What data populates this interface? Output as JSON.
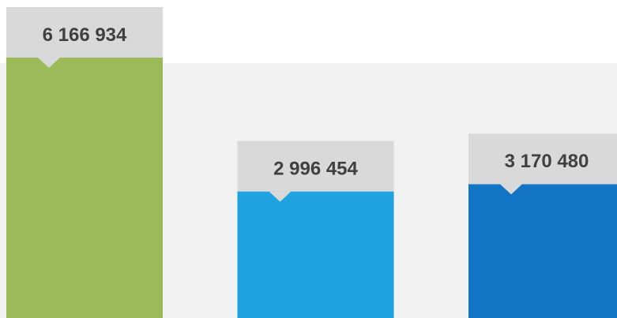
{
  "chart_data": {
    "type": "bar",
    "categories": [
      null,
      null,
      null
    ],
    "values": [
      6166934,
      2996454,
      3170480
    ],
    "value_labels": [
      "6 166 934",
      "2 996 454",
      "3 170 480"
    ],
    "colors": [
      "#9bbb59",
      "#1ea3e0",
      "#1274c4"
    ]
  }
}
